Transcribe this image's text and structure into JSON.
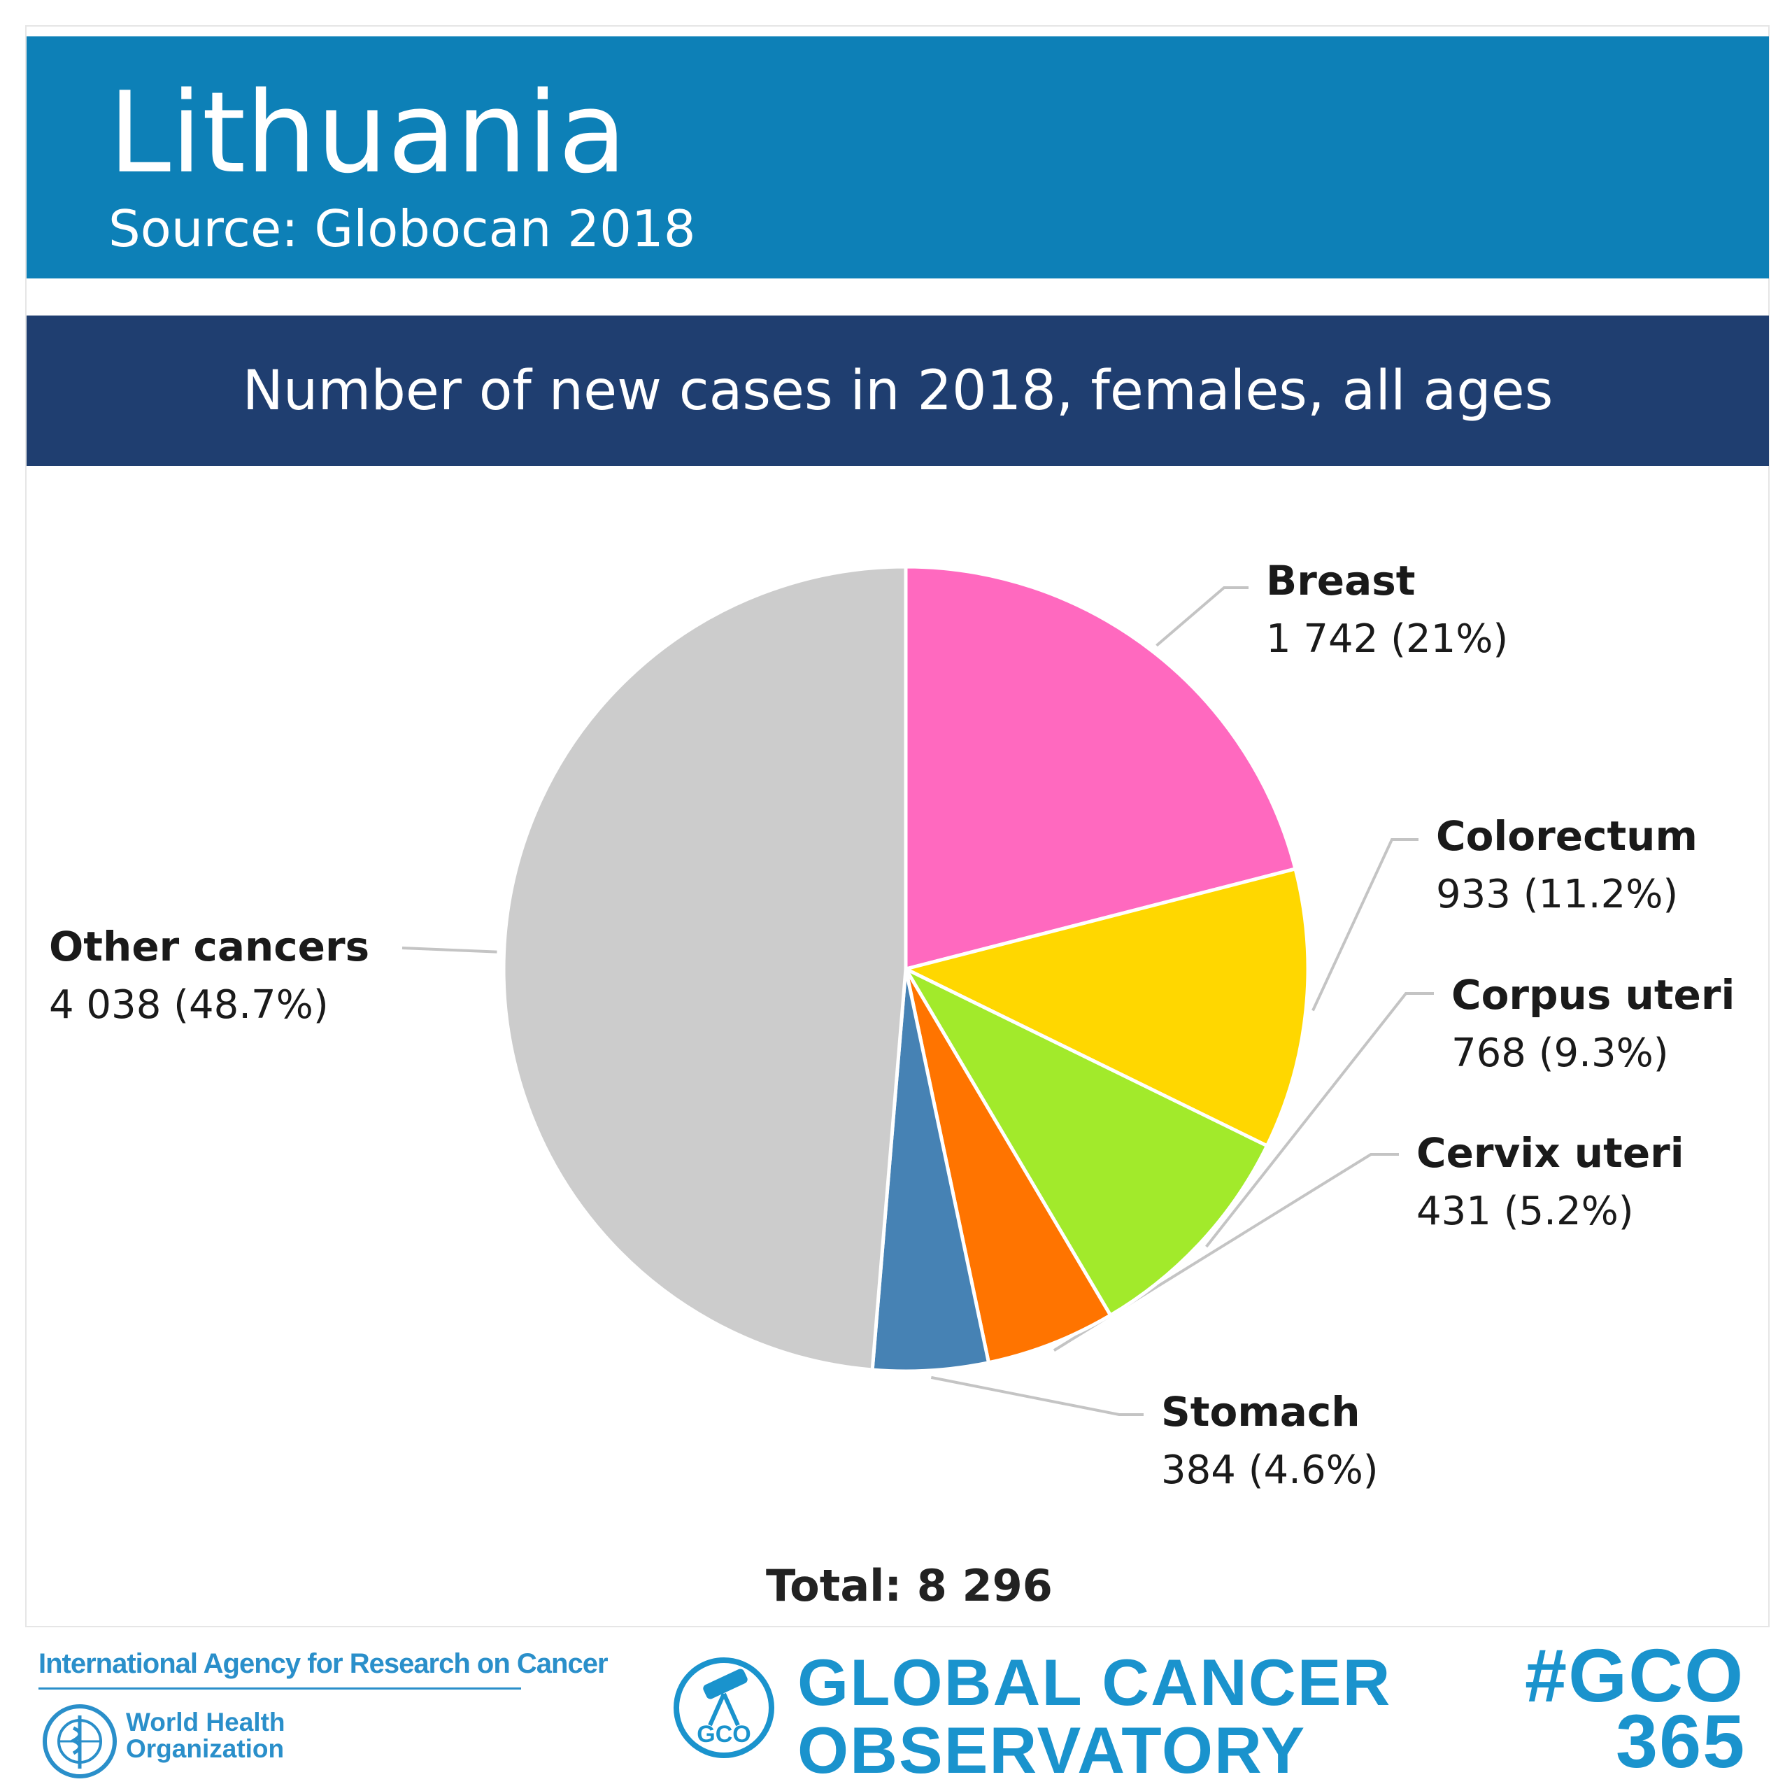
{
  "header": {
    "country": "Lithuania",
    "source": "Source: Globocan 2018"
  },
  "chart_data": {
    "type": "pie",
    "title": "Number of new cases in 2018, females, all ages",
    "total_label": "Total: 8 296",
    "slices": [
      {
        "name": "Breast",
        "value": 1742,
        "label": "1 742 (21%)",
        "color": "#ff69bf"
      },
      {
        "name": "Colorectum",
        "value": 933,
        "label": "933 (11.2%)",
        "color": "#ffd700"
      },
      {
        "name": "Corpus uteri",
        "value": 768,
        "label": "768 (9.3%)",
        "color": "#a2ea2b"
      },
      {
        "name": "Cervix uteri",
        "value": 431,
        "label": "431 (5.2%)",
        "color": "#ff7400"
      },
      {
        "name": "Stomach",
        "value": 384,
        "label": "384 (4.6%)",
        "color": "#4682b4"
      },
      {
        "name": "Other cancers",
        "value": 4038,
        "label": "4 038 (48.7%)",
        "color": "#cccccc"
      }
    ]
  },
  "footer": {
    "iarc": "International Agency for Research on Cancer",
    "who_line1": "World Health",
    "who_line2": "Organization",
    "gco_badge": "GCO",
    "gco_line1": "GLOBAL CANCER",
    "gco_line2": "OBSERVATORY",
    "hashtag_line1": "#GCO",
    "hashtag_line2": "365"
  }
}
